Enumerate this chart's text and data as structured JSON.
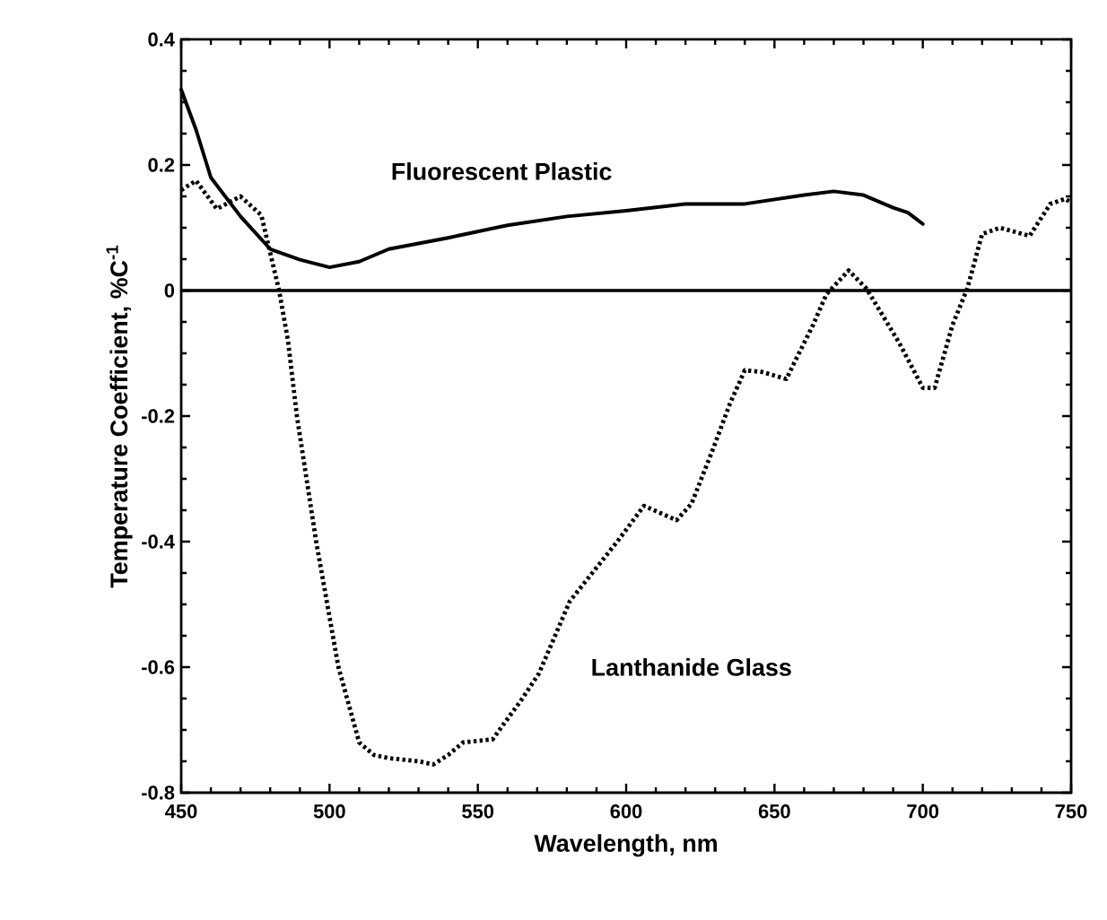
{
  "chart_data": {
    "type": "line",
    "xlabel": "Wavelength, nm",
    "ylabel": "Temperature Coefficient, %C$^{-1}$",
    "xlim": [
      450,
      750
    ],
    "ylim": [
      -0.8,
      0.4
    ],
    "xticks": [
      450,
      500,
      550,
      600,
      650,
      700,
      750
    ],
    "yticks": [
      -0.8,
      -0.6,
      -0.4,
      -0.2,
      0,
      0.2,
      0.4
    ],
    "grid": false,
    "legend": false,
    "marker": "none",
    "ref_lines": [
      {
        "axis": "y",
        "value": 0
      }
    ],
    "series": [
      {
        "name": "Fluorescent Plastic",
        "color": "#000000",
        "line_style": "solid",
        "x": [
          450,
          455,
          460,
          470,
          480,
          490,
          500,
          510,
          520,
          540,
          560,
          580,
          600,
          620,
          640,
          660,
          670,
          680,
          690,
          695,
          700
        ],
        "values": [
          0.32,
          0.256,
          0.18,
          0.118,
          0.066,
          0.049,
          0.037,
          0.046,
          0.066,
          0.084,
          0.104,
          0.118,
          0.127,
          0.138,
          0.138,
          0.152,
          0.158,
          0.152,
          0.132,
          0.124,
          0.106
        ]
      },
      {
        "name": "Lanthanide Glass",
        "color": "#000000",
        "line_style": "dotted",
        "x": [
          450,
          455,
          462,
          470,
          477,
          480,
          483,
          486,
          489,
          495.5,
          503,
          510,
          515,
          520,
          530,
          535,
          540,
          545,
          555,
          565,
          570.6,
          581,
          597,
          606,
          617,
          622,
          629,
          635,
          640,
          646,
          654,
          657,
          663,
          667.5,
          675,
          681,
          692,
          700,
          704,
          710,
          715,
          720,
          726,
          736,
          743,
          748,
          750
        ],
        "values": [
          0.16,
          0.175,
          0.13,
          0.15,
          0.12,
          0.06,
          0,
          -0.08,
          -0.2,
          -0.4,
          -0.6,
          -0.72,
          -0.74,
          -0.745,
          -0.75,
          -0.755,
          -0.74,
          -0.72,
          -0.715,
          -0.65,
          -0.61,
          -0.495,
          -0.4,
          -0.343,
          -0.366,
          -0.34,
          -0.256,
          -0.18,
          -0.127,
          -0.13,
          -0.141,
          -0.112,
          -0.055,
          -0.006,
          0.032,
          0.003,
          -0.083,
          -0.155,
          -0.155,
          -0.055,
          0.003,
          0.09,
          0.1,
          0.087,
          0.138,
          0.146,
          0.14
        ]
      }
    ]
  }
}
